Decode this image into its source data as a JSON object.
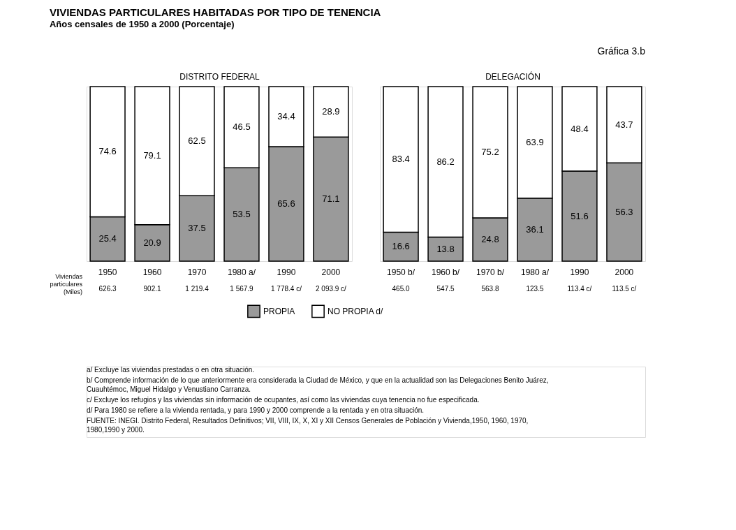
{
  "chart_data": [
    {
      "type": "bar",
      "stacked": true,
      "data_labels": true,
      "tick_labels": "x",
      "legend": "bottom",
      "title": "VIVIENDAS PARTICULARES HABITADAS POR TIPO DE TENENCIA",
      "subtitle": "Años censales de 1950 a 2000 (Porcentaje)",
      "xlabel": "DISTRITO FEDERAL",
      "categories": [
        "1950",
        "1960",
        "1970",
        "1980 a/",
        "1990",
        "2000"
      ],
      "series": [
        {
          "name": "PROPIA",
          "color": "#9a9a9a",
          "values": [
            25.4,
            20.9,
            37.5,
            53.5,
            65.6,
            71.1
          ]
        },
        {
          "name": "NO PROPIA d/",
          "color": "#ffffff",
          "values": [
            74.6,
            79.1,
            62.5,
            46.5,
            34.4,
            28.9
          ]
        }
      ],
      "annotations": [
        "Viviendas particulares (Miles)",
        "626.3",
        "902.1",
        "1 219.4",
        "1 567.9",
        "1 778.4 c/",
        "2 093.9 c/",
        "a/ Excluye las viviendas prestadas o en otra situación.",
        "b/ Comprende información de lo que anteriormente era considerada la Ciudad de México, y que en la actualidad son las Delegaciones Benito Juárez, Cuauhtémoc, Miguel Hidalgo y Venustiano Carranza.",
        "c/ Excluye los refugios y las viviendas sin información de ocupantes, así como las viviendas cuya tenencia no fue especificada.",
        "d/ Para 1980 se refiere a la vivienda rentada, y para 1990 y 2000 comprende a la rentada y en otra situación.",
        "FUENTE: INEGI. Distrito Federal, Resultados Definitivos; VII, VIII, IX, X, XI y XII Censos Generales de Población y Vivienda,1950, 1960, 1970, 1980,1990 y 2000."
      ]
    },
    {
      "type": "bar",
      "stacked": true,
      "data_labels": true,
      "tick_labels": "x",
      "legend": "bottom",
      "title": "Gráfica 3.b",
      "xlabel": "DELEGACIÓN",
      "categories": [
        "1950 b/",
        "1960 b/",
        "1970 b/",
        "1980 a/",
        "1990",
        "2000"
      ],
      "series": [
        {
          "name": "PROPIA",
          "color": "#9a9a9a",
          "values": [
            16.6,
            13.8,
            24.8,
            36.1,
            51.6,
            56.3
          ]
        },
        {
          "name": "NO PROPIA d/",
          "color": "#ffffff",
          "values": [
            83.4,
            86.2,
            75.2,
            63.9,
            48.4,
            43.7
          ]
        }
      ],
      "annotations": [
        "465.0",
        "547.5",
        "563.8",
        "123.5",
        "113.4 c/",
        "113.5 c/"
      ]
    }
  ]
}
